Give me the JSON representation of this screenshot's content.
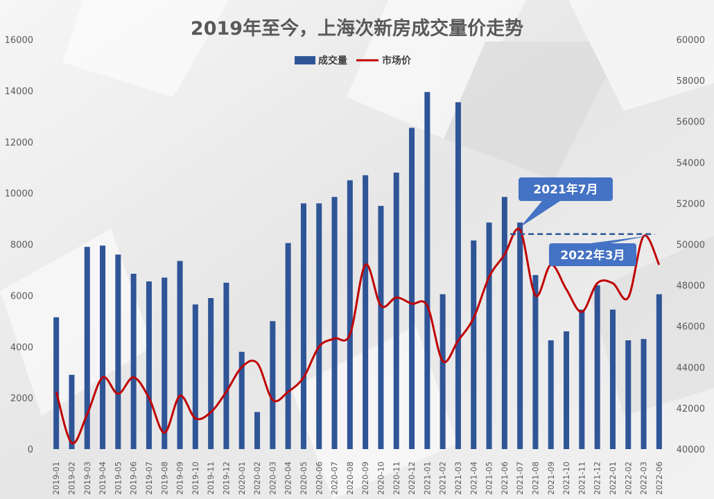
{
  "chart_data": {
    "type": "bar",
    "title": "2019年至今，上海次新房成交量价走势",
    "legend": [
      "成交量",
      "市场价"
    ],
    "legend_position": "top-center",
    "categories": [
      "2019-01",
      "2019-02",
      "2019-03",
      "2019-04",
      "2019-05",
      "2019-06",
      "2019-07",
      "2019-08",
      "2019-09",
      "2019-10",
      "2019-11",
      "2019-12",
      "2020-01",
      "2020-02",
      "2020-03",
      "2020-04",
      "2020-05",
      "2020-06",
      "2020-07",
      "2020-08",
      "2020-09",
      "2020-10",
      "2020-11",
      "2020-12",
      "2021-01",
      "2021-02",
      "2021-03",
      "2021-04",
      "2021-05",
      "2021-06",
      "2021-07",
      "2021-08",
      "2021-09",
      "2021-10",
      "2021-11",
      "2021-12",
      "2022-01",
      "2022-02",
      "2022-03",
      "2022-06"
    ],
    "series": [
      {
        "name": "成交量",
        "type": "bar",
        "axis": "left",
        "color": "#2f5597",
        "values": [
          5150,
          2900,
          7900,
          7950,
          7600,
          6850,
          6550,
          6700,
          7350,
          5650,
          5900,
          6500,
          3800,
          1450,
          5000,
          8050,
          9600,
          9600,
          9850,
          10500,
          10700,
          9500,
          10800,
          12550,
          13950,
          6050,
          13550,
          8150,
          8850,
          9850,
          8850,
          6800,
          4250,
          4600,
          5450,
          6400,
          5450,
          4250,
          4300,
          6050
        ]
      },
      {
        "name": "市场价",
        "type": "line",
        "axis": "right",
        "color": "#c00000",
        "values": [
          42800,
          40300,
          41700,
          43500,
          42700,
          43500,
          42500,
          40800,
          42600,
          41500,
          41800,
          42800,
          44000,
          44200,
          42400,
          42800,
          43500,
          45000,
          45400,
          45600,
          49000,
          47000,
          47400,
          47100,
          47000,
          44300,
          45300,
          46400,
          48400,
          49500,
          50700,
          47500,
          49000,
          47800,
          46700,
          48100,
          48100,
          47400,
          50400,
          49000
        ]
      }
    ],
    "y_left": {
      "min": 0,
      "max": 16000,
      "ticks": [
        0,
        2000,
        4000,
        6000,
        8000,
        10000,
        12000,
        14000,
        16000
      ]
    },
    "y_right": {
      "min": 40000,
      "max": 60000,
      "ticks": [
        40000,
        42000,
        44000,
        46000,
        48000,
        50000,
        52000,
        54000,
        56000,
        58000,
        60000
      ]
    },
    "grid": false,
    "annotations": [
      {
        "text": "2021年7月",
        "category": "2021-07"
      },
      {
        "text": "2022年3月",
        "category": "2022-03"
      }
    ],
    "reference_line": {
      "from": "2021-07",
      "to": "2022-03",
      "value": 50500,
      "style": "dashed",
      "color": "#2f5597"
    }
  },
  "colors": {
    "callout": "#4472c4",
    "title": "#595959",
    "axis_text": "#595959"
  }
}
